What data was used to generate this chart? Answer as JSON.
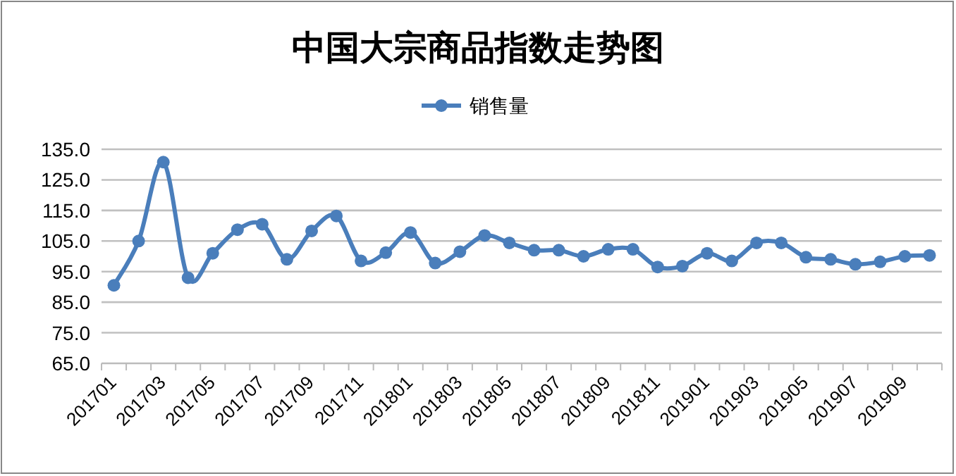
{
  "chart_data": {
    "type": "line",
    "title": "中国大宗商品指数走势图",
    "categories": [
      "201701",
      null,
      "201703",
      null,
      "201705",
      null,
      "201707",
      null,
      "201709",
      null,
      "201711",
      null,
      "201801",
      null,
      "201803",
      null,
      "201805",
      null,
      "201807",
      null,
      "201809",
      null,
      "201811",
      null,
      "201901",
      null,
      "201903",
      null,
      "201905",
      null,
      "201907",
      null,
      "201909",
      null
    ],
    "series": [
      {
        "name": "销售量",
        "color": "#4a7ebb",
        "values": [
          90.5,
          105,
          130.8,
          93,
          101,
          108.7,
          110.5,
          99,
          108.3,
          113.2,
          98.5,
          101.2,
          107.8,
          97.8,
          101.5,
          106.8,
          104.4,
          102,
          102,
          100,
          102.3,
          102.3,
          96.5,
          96.8,
          101,
          98.5,
          104.4,
          104.4,
          99.7,
          99,
          97.4,
          98.2,
          100,
          100.3
        ]
      }
    ],
    "ylim": [
      65,
      135
    ],
    "yticks": [
      {
        "value": 65,
        "label": "65.0"
      },
      {
        "value": 75,
        "label": "75.0"
      },
      {
        "value": 85,
        "label": "85.0"
      },
      {
        "value": 95,
        "label": "95.0"
      },
      {
        "value": 105,
        "label": "105.0"
      },
      {
        "value": 115,
        "label": "115.0"
      },
      {
        "value": 125,
        "label": "125.0"
      },
      {
        "value": 135,
        "label": "135.0"
      }
    ],
    "grid": "y",
    "legend": "top",
    "marker": "circle",
    "line_style": "solid"
  }
}
